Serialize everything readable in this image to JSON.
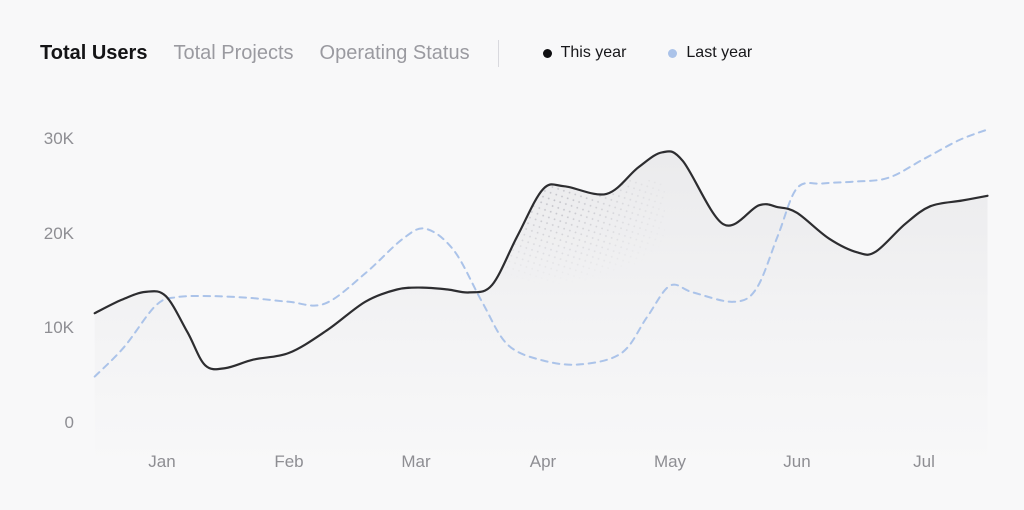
{
  "header": {
    "tabs": [
      {
        "id": "total-users",
        "label": "Total Users",
        "active": true
      },
      {
        "id": "total-projects",
        "label": "Total Projects",
        "active": false
      },
      {
        "id": "operating-status",
        "label": "Operating Status",
        "active": false
      }
    ],
    "legend": [
      {
        "id": "this-year",
        "label": "This year",
        "color": "#0f0f12"
      },
      {
        "id": "last-year",
        "label": "Last year",
        "color": "#abc3e9"
      }
    ]
  },
  "chart_data": {
    "type": "line",
    "title": "Total Users",
    "unit": "K",
    "categories": [
      "Jan",
      "Feb",
      "Mar",
      "Apr",
      "May",
      "Jun",
      "Jul"
    ],
    "y_ticks": [
      {
        "label": "30K",
        "value": 30
      },
      {
        "label": "20K",
        "value": 20
      },
      {
        "label": "10K",
        "value": 10
      },
      {
        "label": "0",
        "value": 0
      }
    ],
    "ylim": [
      0,
      32
    ],
    "x_range_months": [
      -0.53,
      6.5
    ],
    "grid": false,
    "legend_position": "top",
    "series": [
      {
        "name": "This year",
        "style": "solid",
        "color": "#2d2d30",
        "area_fill": true,
        "points_month_value": [
          [
            -0.53,
            11.6
          ],
          [
            -0.32,
            13.0
          ],
          [
            -0.13,
            13.85
          ],
          [
            0.03,
            13.4
          ],
          [
            0.2,
            9.6
          ],
          [
            0.34,
            6.1
          ],
          [
            0.5,
            5.8
          ],
          [
            0.72,
            6.7
          ],
          [
            1.0,
            7.4
          ],
          [
            1.3,
            9.8
          ],
          [
            1.6,
            12.8
          ],
          [
            1.85,
            14.1
          ],
          [
            2.05,
            14.3
          ],
          [
            2.25,
            14.1
          ],
          [
            2.42,
            13.8
          ],
          [
            2.6,
            14.6
          ],
          [
            2.8,
            19.8
          ],
          [
            3.0,
            24.7
          ],
          [
            3.17,
            25.0
          ],
          [
            3.5,
            24.2
          ],
          [
            3.75,
            27.0
          ],
          [
            3.94,
            28.6
          ],
          [
            4.1,
            27.7
          ],
          [
            4.42,
            21.0
          ],
          [
            4.7,
            23.0
          ],
          [
            4.85,
            22.8
          ],
          [
            5.0,
            22.2
          ],
          [
            5.25,
            19.5
          ],
          [
            5.48,
            18.0
          ],
          [
            5.62,
            18.1
          ],
          [
            5.85,
            21.0
          ],
          [
            6.05,
            22.9
          ],
          [
            6.3,
            23.5
          ],
          [
            6.5,
            24.0
          ]
        ]
      },
      {
        "name": "Last year",
        "style": "dashed",
        "color": "#abc3e9",
        "area_fill": false,
        "points_month_value": [
          [
            -0.53,
            4.9
          ],
          [
            -0.3,
            8.0
          ],
          [
            -0.05,
            12.4
          ],
          [
            0.12,
            13.3
          ],
          [
            0.4,
            13.4
          ],
          [
            0.7,
            13.2
          ],
          [
            1.0,
            12.8
          ],
          [
            1.28,
            12.6
          ],
          [
            1.6,
            15.8
          ],
          [
            1.9,
            19.5
          ],
          [
            2.08,
            20.5
          ],
          [
            2.3,
            18.2
          ],
          [
            2.52,
            12.8
          ],
          [
            2.72,
            8.3
          ],
          [
            3.0,
            6.6
          ],
          [
            3.3,
            6.2
          ],
          [
            3.62,
            7.4
          ],
          [
            3.82,
            11.2
          ],
          [
            4.0,
            14.5
          ],
          [
            4.18,
            13.8
          ],
          [
            4.5,
            12.8
          ],
          [
            4.68,
            14.2
          ],
          [
            4.85,
            19.8
          ],
          [
            5.0,
            24.8
          ],
          [
            5.2,
            25.3
          ],
          [
            5.45,
            25.5
          ],
          [
            5.72,
            25.9
          ],
          [
            6.0,
            27.9
          ],
          [
            6.28,
            29.9
          ],
          [
            6.5,
            31.0
          ]
        ]
      }
    ]
  }
}
